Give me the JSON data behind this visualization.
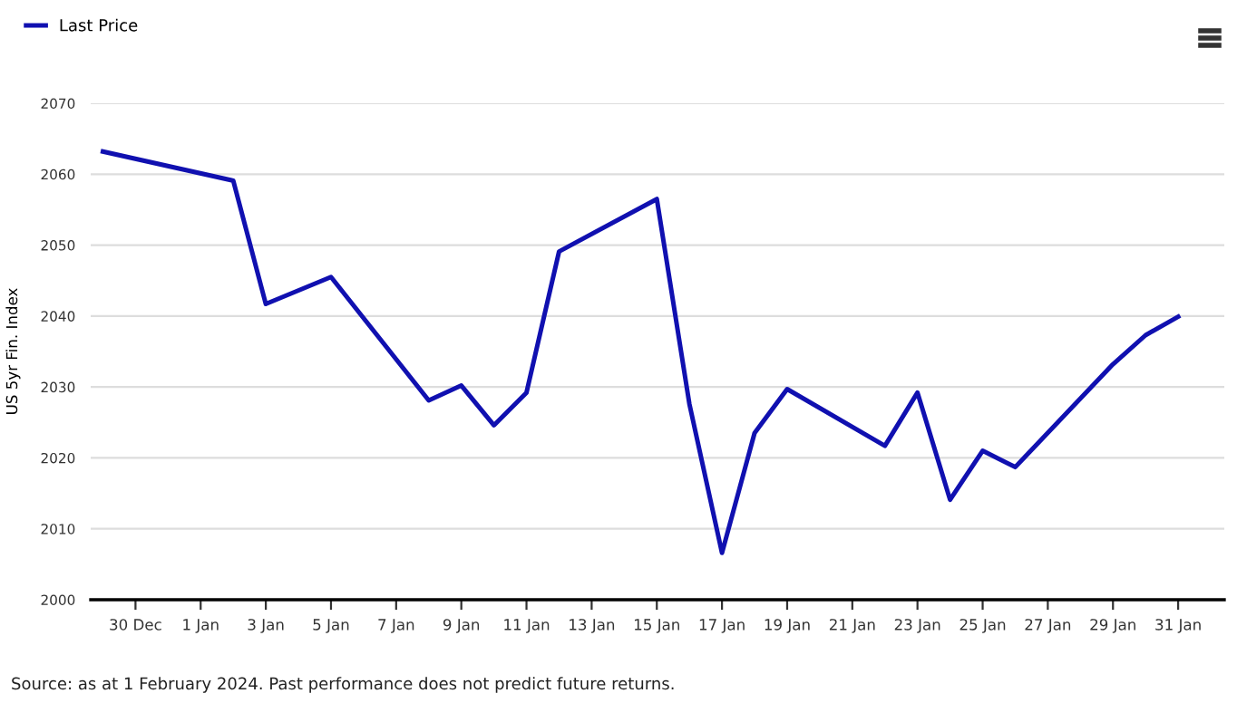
{
  "chart_data": {
    "type": "line",
    "ylabel": "US 5yr Fin. Index",
    "x": [
      "2023-12-29",
      "2024-01-02",
      "2024-01-03",
      "2024-01-05",
      "2024-01-08",
      "2024-01-09",
      "2024-01-10",
      "2024-01-11",
      "2024-01-12",
      "2024-01-15",
      "2024-01-16",
      "2024-01-17",
      "2024-01-18",
      "2024-01-19",
      "2024-01-22",
      "2024-01-23",
      "2024-01-24",
      "2024-01-25",
      "2024-01-26",
      "2024-01-29",
      "2024-01-30",
      "2024-01-31"
    ],
    "series": [
      {
        "name": "Last Price",
        "color": "#1010b0",
        "values": [
          2063.2,
          2059.1,
          2041.7,
          2045.5,
          2028.1,
          2030.2,
          2024.6,
          2029.2,
          2049.1,
          2056.5,
          2027.6,
          2006.6,
          2023.5,
          2029.7,
          2021.7,
          2029.2,
          2014.1,
          2021.0,
          2018.7,
          2033.2,
          2037.3,
          2039.9
        ]
      }
    ],
    "xlim": [
      "2023-12-28T15:00",
      "2024-02-01T10:00"
    ],
    "xticks": [
      {
        "value": "2023-12-30",
        "label": "30 Dec"
      },
      {
        "value": "2024-01-01",
        "label": "1 Jan"
      },
      {
        "value": "2024-01-03",
        "label": "3 Jan"
      },
      {
        "value": "2024-01-05",
        "label": "5 Jan"
      },
      {
        "value": "2024-01-07",
        "label": "7 Jan"
      },
      {
        "value": "2024-01-09",
        "label": "9 Jan"
      },
      {
        "value": "2024-01-11",
        "label": "11 Jan"
      },
      {
        "value": "2024-01-13",
        "label": "13 Jan"
      },
      {
        "value": "2024-01-15",
        "label": "15 Jan"
      },
      {
        "value": "2024-01-17",
        "label": "17 Jan"
      },
      {
        "value": "2024-01-19",
        "label": "19 Jan"
      },
      {
        "value": "2024-01-21",
        "label": "21 Jan"
      },
      {
        "value": "2024-01-23",
        "label": "23 Jan"
      },
      {
        "value": "2024-01-25",
        "label": "25 Jan"
      },
      {
        "value": "2024-01-27",
        "label": "27 Jan"
      },
      {
        "value": "2024-01-29",
        "label": "29 Jan"
      },
      {
        "value": "2024-01-31",
        "label": "31 Jan"
      }
    ],
    "ylim": [
      2000,
      2070
    ],
    "yticks": [
      2000,
      2010,
      2020,
      2030,
      2040,
      2050,
      2060,
      2070
    ],
    "grid": "y",
    "legend": "top left",
    "marker": "none",
    "line_style": "solid",
    "annotations": [
      "Source: as at 1 February 2024. Past performance does not predict future returns."
    ]
  }
}
